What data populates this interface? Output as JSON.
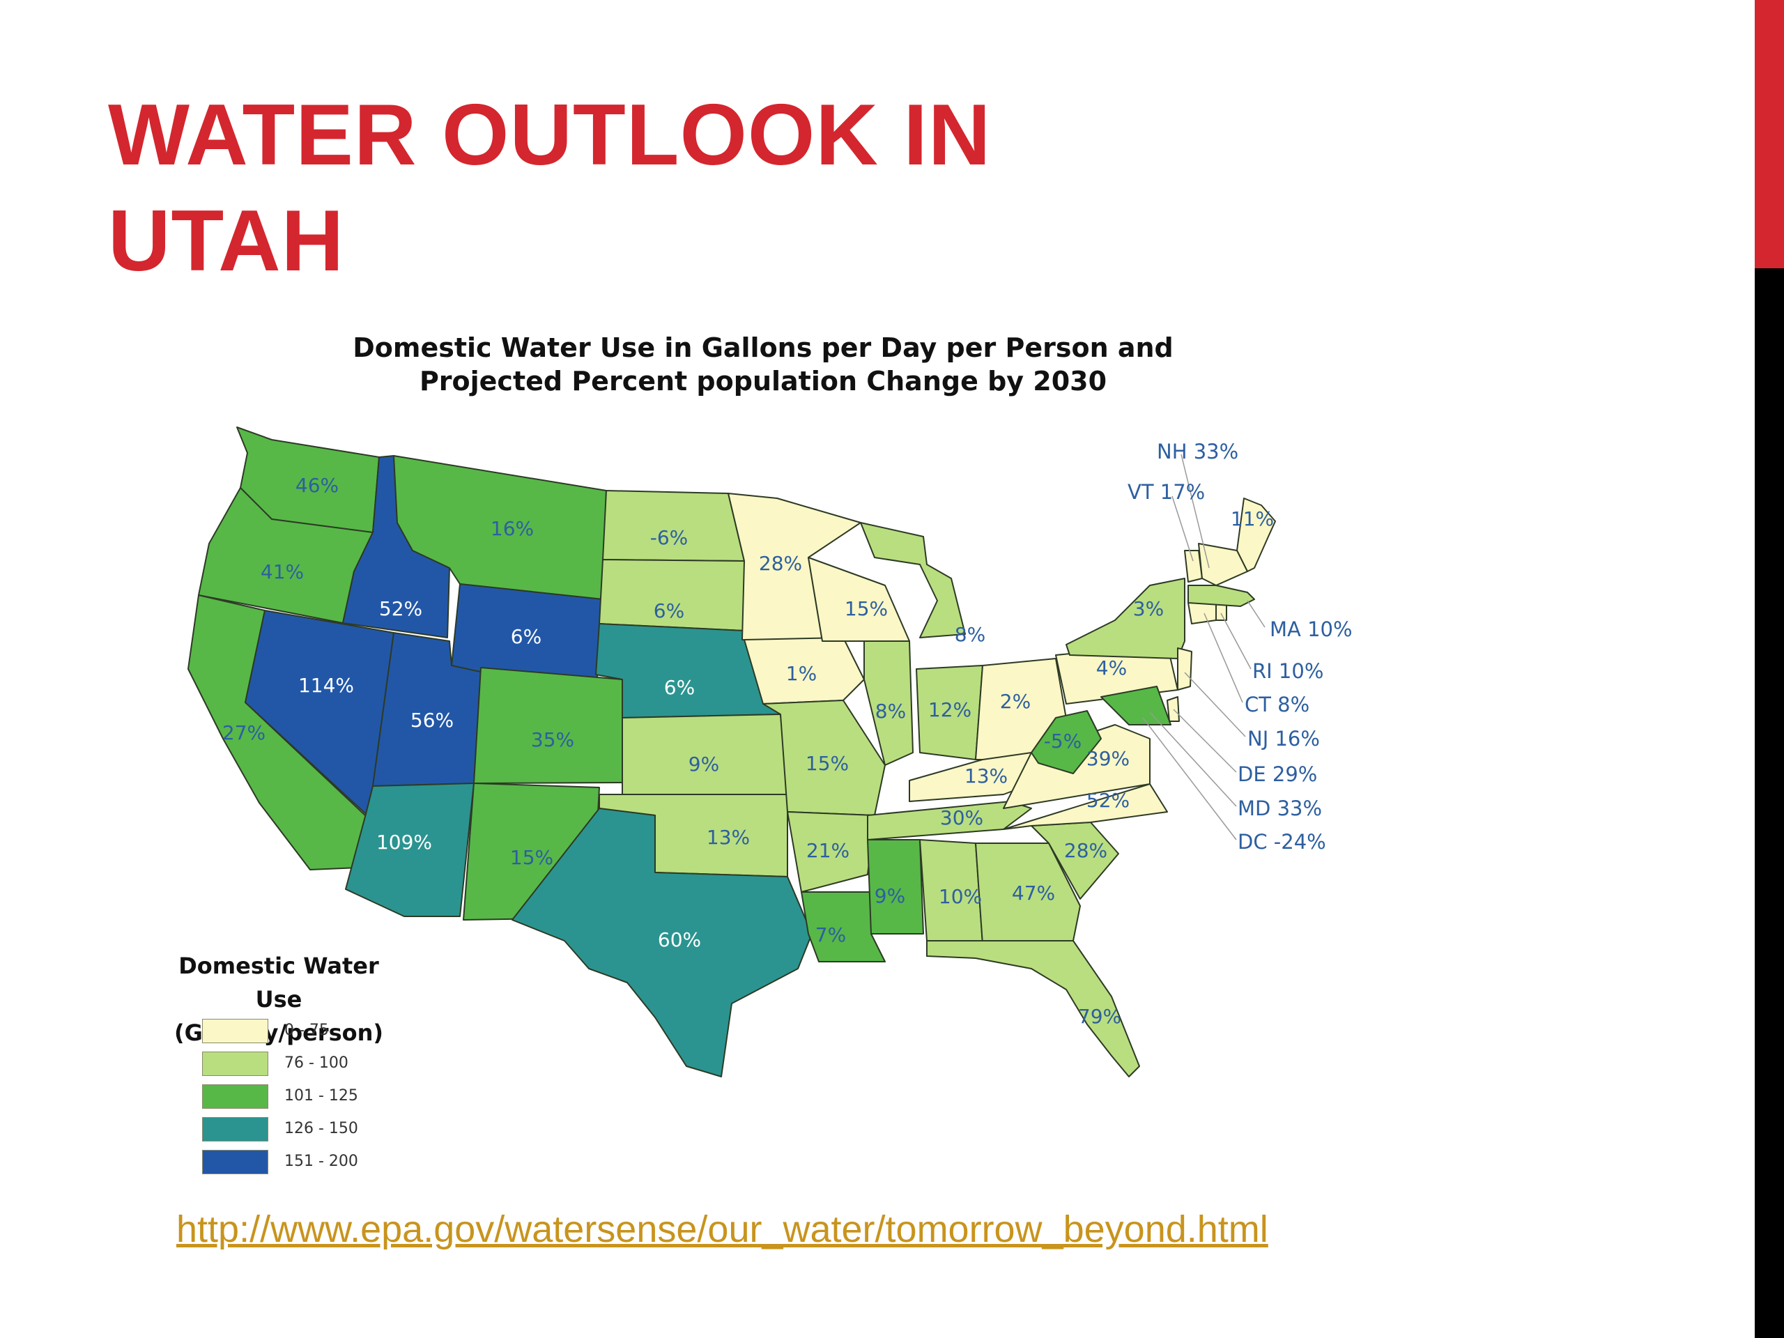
{
  "slide": {
    "title_lines": [
      "WATER OUTLOOK IN",
      "UTAH"
    ],
    "source_url": "http://www.epa.gov/watersense/our_water/tomorrow_beyond.html"
  },
  "map": {
    "title_lines": [
      "Domestic Water Use in Gallons per Day per Person and",
      "Projected Percent population Change by 2030"
    ],
    "legend": {
      "title_lines": [
        "Domestic Water Use",
        "(Gal/day/person)"
      ],
      "classes": [
        {
          "label": "0 - 75",
          "color": "#fbf7c6"
        },
        {
          "label": "76 - 100",
          "color": "#b9de7f"
        },
        {
          "label": "101 - 125",
          "color": "#57b848"
        },
        {
          "label": "126 - 150",
          "color": "#2b9490"
        },
        {
          "label": "151 - 200",
          "color": "#2257a8"
        }
      ]
    },
    "states": [
      {
        "state": "WA",
        "label": "46%",
        "class": 2
      },
      {
        "state": "OR",
        "label": "41%",
        "class": 2
      },
      {
        "state": "CA",
        "label": "27%",
        "class": 2
      },
      {
        "state": "ID",
        "label": "52%",
        "class": 4
      },
      {
        "state": "NV",
        "label": "114%",
        "class": 4
      },
      {
        "state": "UT",
        "label": "56%",
        "class": 4
      },
      {
        "state": "AZ",
        "label": "109%",
        "class": 3
      },
      {
        "state": "MT",
        "label": "16%",
        "class": 2
      },
      {
        "state": "WY",
        "label": "6%",
        "class": 4
      },
      {
        "state": "CO",
        "label": "35%",
        "class": 2
      },
      {
        "state": "NM",
        "label": "15%",
        "class": 2
      },
      {
        "state": "ND",
        "label": "-6%",
        "class": 1
      },
      {
        "state": "SD",
        "label": "6%",
        "class": 1
      },
      {
        "state": "NE",
        "label": "6%",
        "class": 3
      },
      {
        "state": "KS",
        "label": "9%",
        "class": 1
      },
      {
        "state": "OK",
        "label": "13%",
        "class": 1
      },
      {
        "state": "TX",
        "label": "60%",
        "class": 3
      },
      {
        "state": "MN",
        "label": "28%",
        "class": 0
      },
      {
        "state": "IA",
        "label": "1%",
        "class": 0
      },
      {
        "state": "MO",
        "label": "15%",
        "class": 1
      },
      {
        "state": "AR",
        "label": "21%",
        "class": 1
      },
      {
        "state": "LA",
        "label": "7%",
        "class": 2
      },
      {
        "state": "WI",
        "label": "15%",
        "class": 0
      },
      {
        "state": "IL",
        "label": "8%",
        "class": 1
      },
      {
        "state": "MI",
        "label": "8%",
        "class": 1
      },
      {
        "state": "IN",
        "label": "12%",
        "class": 1
      },
      {
        "state": "OH",
        "label": "2%",
        "class": 0
      },
      {
        "state": "KY",
        "label": "13%",
        "class": 0
      },
      {
        "state": "TN",
        "label": "30%",
        "class": 1
      },
      {
        "state": "MS",
        "label": "9%",
        "class": 2
      },
      {
        "state": "AL",
        "label": "10%",
        "class": 1
      },
      {
        "state": "GA",
        "label": "47%",
        "class": 1
      },
      {
        "state": "FL",
        "label": "79%",
        "class": 1
      },
      {
        "state": "SC",
        "label": "28%",
        "class": 1
      },
      {
        "state": "NC",
        "label": "52%",
        "class": 0
      },
      {
        "state": "VA",
        "label": "39%",
        "class": 0
      },
      {
        "state": "WV",
        "label": "-5%",
        "class": 2
      },
      {
        "state": "PA",
        "label": "4%",
        "class": 0
      },
      {
        "state": "NY",
        "label": "3%",
        "class": 1
      },
      {
        "state": "ME",
        "label": "11%",
        "class": 0
      },
      {
        "state": "MD",
        "label": "",
        "class": 2
      },
      {
        "state": "DE",
        "label": "",
        "class": 0
      },
      {
        "state": "NJ",
        "label": "",
        "class": 0
      },
      {
        "state": "CT",
        "label": "",
        "class": 0
      },
      {
        "state": "RI",
        "label": "",
        "class": 0
      },
      {
        "state": "MA",
        "label": "",
        "class": 1
      },
      {
        "state": "VT",
        "label": "",
        "class": 0
      },
      {
        "state": "NH",
        "label": "",
        "class": 0
      }
    ],
    "callouts": [
      {
        "state": "NH",
        "label": "NH 33%"
      },
      {
        "state": "VT",
        "label": "VT 17%"
      },
      {
        "state": "MA",
        "label": "MA 10%"
      },
      {
        "state": "RI",
        "label": "RI 10%"
      },
      {
        "state": "CT",
        "label": "CT 8%"
      },
      {
        "state": "NJ",
        "label": "NJ 16%"
      },
      {
        "state": "DE",
        "label": "DE 29%"
      },
      {
        "state": "MD",
        "label": "MD 33%"
      },
      {
        "state": "DC",
        "label": "DC -24%"
      }
    ]
  }
}
